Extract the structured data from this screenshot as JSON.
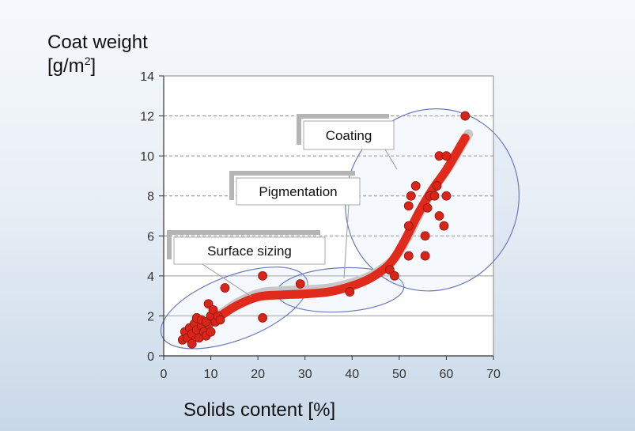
{
  "chart_data": {
    "type": "scatter",
    "title": "",
    "xlabel": "Solids content  [%]",
    "ylabel": "Coat weight",
    "ylabel_unit_base": "[g/m",
    "ylabel_unit_sup": "2",
    "ylabel_unit_end": "]",
    "xlim": [
      0,
      70
    ],
    "ylim": [
      0,
      14
    ],
    "x_ticks": [
      0,
      10,
      20,
      30,
      40,
      50,
      60,
      70
    ],
    "y_ticks": [
      0,
      2,
      4,
      6,
      8,
      10,
      12,
      14
    ],
    "grid": "horizontal-dashed",
    "points": [
      [
        4,
        0.8
      ],
      [
        4.5,
        1.2
      ],
      [
        5,
        0.9
      ],
      [
        5.5,
        1.4
      ],
      [
        6,
        0.6
      ],
      [
        6,
        1.1
      ],
      [
        6.5,
        1.6
      ],
      [
        7,
        1.3
      ],
      [
        7,
        1.9
      ],
      [
        7.5,
        0.9
      ],
      [
        8,
        1.5
      ],
      [
        8,
        1.8
      ],
      [
        8.5,
        1.2
      ],
      [
        9,
        1.0
      ],
      [
        9,
        1.7
      ],
      [
        9.5,
        2.6
      ],
      [
        10,
        1.2
      ],
      [
        10,
        2.0
      ],
      [
        10.5,
        2.3
      ],
      [
        11,
        1.7
      ],
      [
        11.5,
        2.0
      ],
      [
        12,
        1.8
      ],
      [
        13,
        3.4
      ],
      [
        21,
        1.9
      ],
      [
        21,
        4.0
      ],
      [
        29,
        3.6
      ],
      [
        39.5,
        3.2
      ],
      [
        48,
        4.3
      ],
      [
        49,
        4.0
      ],
      [
        52,
        5.0
      ],
      [
        52,
        6.5
      ],
      [
        52,
        7.5
      ],
      [
        52.5,
        8.0
      ],
      [
        53.5,
        8.5
      ],
      [
        55.5,
        5.0
      ],
      [
        55.5,
        6.0
      ],
      [
        56,
        7.4
      ],
      [
        56.5,
        8.0
      ],
      [
        57.5,
        8.0
      ],
      [
        58,
        8.5
      ],
      [
        58.5,
        10.0
      ],
      [
        58.5,
        7.0
      ],
      [
        59.5,
        6.5
      ],
      [
        60,
        8.0
      ],
      [
        60,
        10.0
      ],
      [
        64,
        12.0
      ]
    ],
    "trend": [
      [
        6,
        1.0
      ],
      [
        10,
        1.65
      ],
      [
        15,
        2.45
      ],
      [
        20,
        2.95
      ],
      [
        25,
        3.05
      ],
      [
        30,
        3.1
      ],
      [
        35,
        3.2
      ],
      [
        40,
        3.5
      ],
      [
        44,
        3.9
      ],
      [
        48,
        4.6
      ],
      [
        51,
        5.7
      ],
      [
        54,
        7.1
      ],
      [
        57,
        8.3
      ],
      [
        60,
        9.3
      ],
      [
        64,
        10.9
      ]
    ],
    "trend_color": "#e02b1c",
    "point_color": "#d9241a",
    "annotations": [
      {
        "label": "Surface sizing"
      },
      {
        "label": "Pigmentation"
      },
      {
        "label": "Coating"
      }
    ]
  }
}
